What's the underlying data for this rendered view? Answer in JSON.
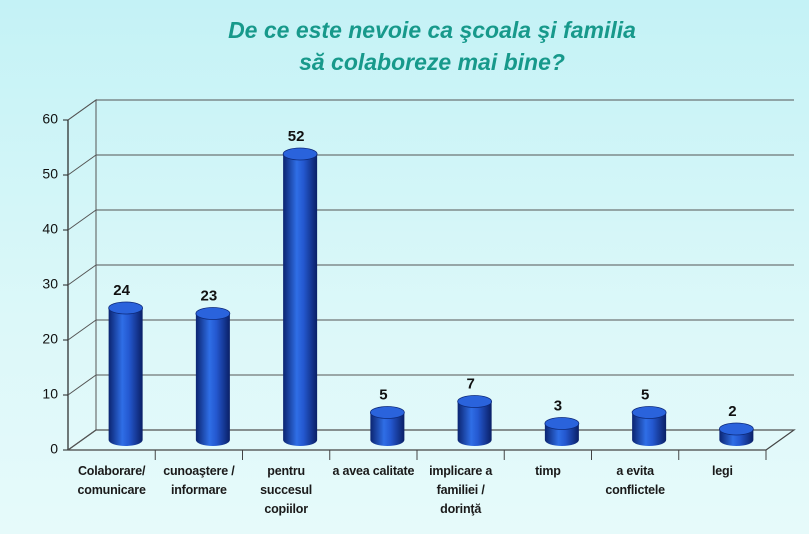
{
  "chart_data": {
    "type": "bar",
    "title": [
      "De ce este nevoie ca şcoala şi familia",
      "să colaboreze mai bine?"
    ],
    "categories": [
      "Colaborare/ comunicare",
      "cunoaştere / informare",
      "pentru succesul copiilor",
      "a avea calitate",
      "implicare a familiei / dorinţă",
      "timp",
      "a evita conflictele",
      "legi"
    ],
    "values": [
      24,
      23,
      52,
      5,
      7,
      3,
      5,
      2
    ],
    "color": "#1f4fc4",
    "ylim": [
      0,
      60
    ],
    "yticks": [
      0,
      10,
      20,
      30,
      40,
      50,
      60
    ],
    "grid": true
  }
}
